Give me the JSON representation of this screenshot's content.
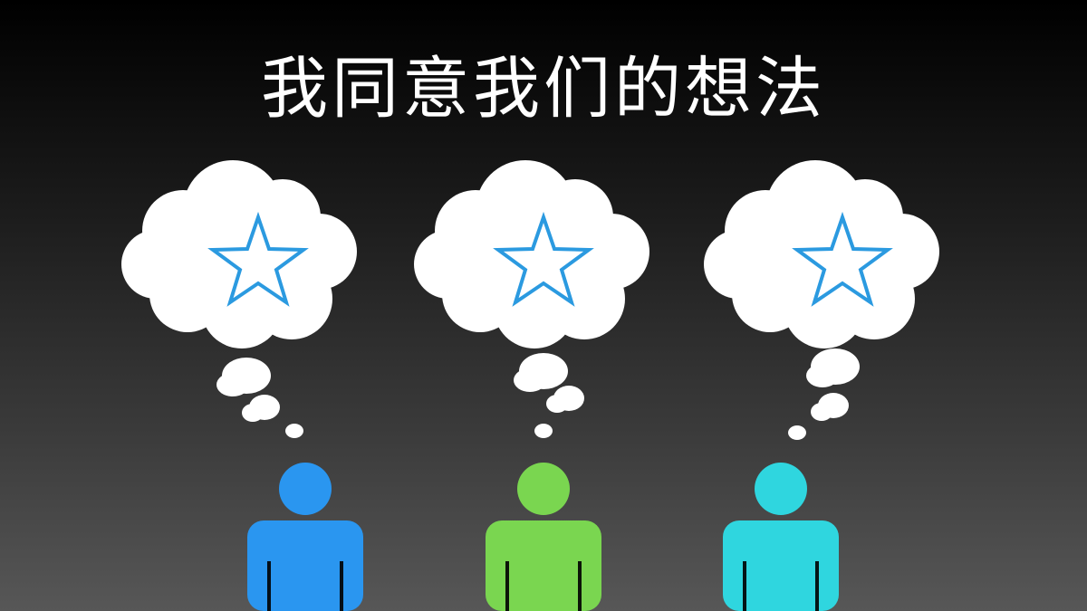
{
  "slide": {
    "title": "我同意我们的想法"
  },
  "people": [
    {
      "id": "person-1",
      "color": "#2a96f0",
      "thought_icon": "star-outline-icon",
      "star_color": "#2b9ae0"
    },
    {
      "id": "person-2",
      "color": "#7ad650",
      "thought_icon": "star-outline-icon",
      "star_color": "#2b9ae0"
    },
    {
      "id": "person-3",
      "color": "#2fd6df",
      "thought_icon": "star-outline-icon",
      "star_color": "#2b9ae0"
    }
  ]
}
